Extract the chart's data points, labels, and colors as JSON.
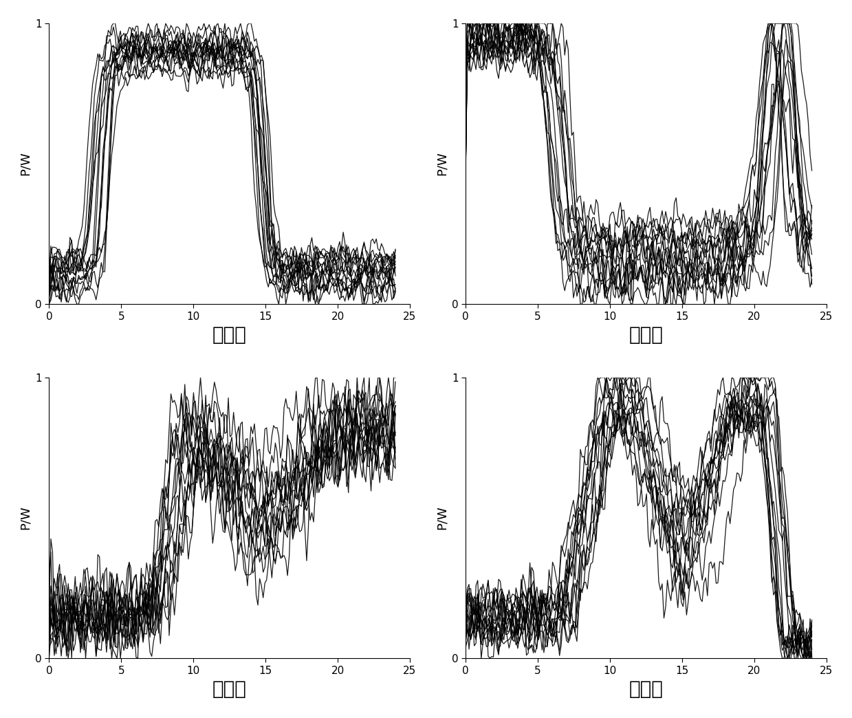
{
  "n_curves": 15,
  "n_points": 200,
  "line_color": "#000000",
  "line_width": 0.9,
  "line_alpha": 0.9,
  "xlabel_fontsize": 20,
  "ylabel_fontsize": 13,
  "tick_fontsize": 11,
  "subplots": [
    {
      "xlabel": "第一类",
      "ylabel": "P/W"
    },
    {
      "xlabel": "第二类",
      "ylabel": "P/W"
    },
    {
      "xlabel": "第三类",
      "ylabel": "P/W"
    },
    {
      "xlabel": "第四类",
      "ylabel": "P/W"
    }
  ],
  "seed": 42
}
